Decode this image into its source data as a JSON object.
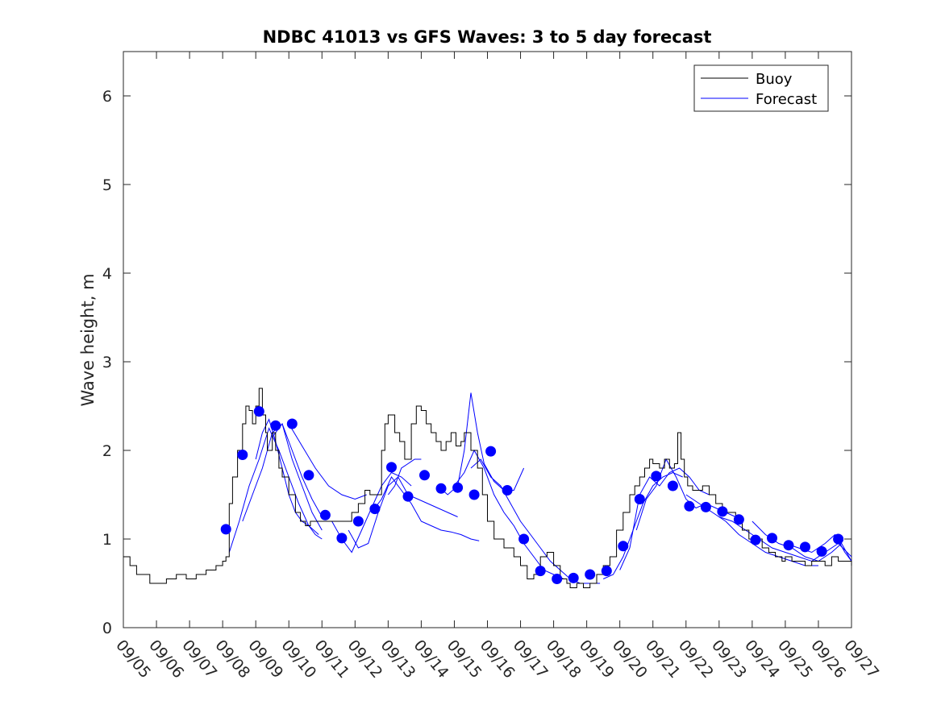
{
  "chart_data": {
    "type": "line",
    "title": "NDBC 41013 vs GFS Waves: 3 to 5 day forecast",
    "xlabel": "",
    "ylabel": "Wave height, m",
    "xlim": [
      0,
      22
    ],
    "ylim": [
      0,
      6.5
    ],
    "yticks": [
      0,
      1,
      2,
      3,
      4,
      5,
      6
    ],
    "xtick_labels": [
      "09/05",
      "09/06",
      "09/07",
      "09/08",
      "09/09",
      "09/10",
      "09/11",
      "09/12",
      "09/13",
      "09/14",
      "09/15",
      "09/16",
      "09/17",
      "09/18",
      "09/19",
      "09/20",
      "09/21",
      "09/22",
      "09/23",
      "09/24",
      "09/25",
      "09/26",
      "09/27"
    ],
    "legend": {
      "position": "top-right",
      "entries": [
        "Buoy",
        "Forecast"
      ]
    },
    "colors": {
      "buoy": "#000000",
      "forecast": "#0000ff",
      "axes": "#262626"
    },
    "buoy": {
      "name": "Buoy",
      "x": [
        0,
        0.2,
        0.4,
        0.6,
        0.8,
        1.0,
        1.3,
        1.6,
        1.9,
        2.2,
        2.5,
        2.8,
        3.0,
        3.1,
        3.2,
        3.3,
        3.45,
        3.6,
        3.7,
        3.8,
        3.9,
        4.0,
        4.1,
        4.2,
        4.3,
        4.35,
        4.5,
        4.6,
        4.7,
        4.8,
        5.0,
        5.2,
        5.35,
        5.5,
        5.65,
        5.8,
        6.0,
        6.3,
        6.6,
        6.9,
        7.1,
        7.3,
        7.45,
        7.6,
        7.8,
        7.9,
        8.0,
        8.2,
        8.35,
        8.5,
        8.7,
        8.85,
        9.0,
        9.15,
        9.3,
        9.45,
        9.6,
        9.75,
        9.9,
        10.05,
        10.2,
        10.3,
        10.5,
        10.7,
        10.85,
        11.0,
        11.2,
        11.5,
        11.8,
        12.0,
        12.2,
        12.4,
        12.6,
        12.8,
        13.0,
        13.2,
        13.4,
        13.5,
        13.7,
        13.9,
        14.1,
        14.3,
        14.5,
        14.7,
        14.9,
        15.1,
        15.3,
        15.45,
        15.6,
        15.75,
        15.9,
        16.0,
        16.2,
        16.35,
        16.5,
        16.65,
        16.75,
        16.85,
        16.95,
        17.05,
        17.2,
        17.35,
        17.5,
        17.7,
        17.9,
        18.1,
        18.3,
        18.5,
        18.7,
        18.9,
        19.1,
        19.3,
        19.5,
        19.7,
        19.9,
        20.0,
        20.2,
        20.4,
        20.6,
        20.8,
        21.0,
        21.2,
        21.4,
        21.6,
        21.8,
        22.0
      ],
      "values": [
        0.8,
        0.7,
        0.6,
        0.6,
        0.5,
        0.5,
        0.55,
        0.6,
        0.55,
        0.6,
        0.65,
        0.7,
        0.75,
        0.8,
        1.4,
        1.7,
        2.0,
        2.3,
        2.5,
        2.45,
        2.3,
        2.5,
        2.7,
        2.4,
        2.2,
        2.0,
        2.2,
        2.0,
        1.8,
        1.7,
        1.5,
        1.3,
        1.2,
        1.15,
        1.2,
        1.2,
        1.2,
        1.2,
        1.2,
        1.3,
        1.4,
        1.55,
        1.5,
        1.5,
        2.0,
        2.3,
        2.4,
        2.2,
        2.1,
        1.9,
        2.3,
        2.5,
        2.45,
        2.3,
        2.2,
        2.1,
        2.0,
        2.1,
        2.2,
        2.05,
        2.1,
        2.2,
        2.0,
        1.8,
        1.5,
        1.2,
        1.0,
        0.9,
        0.8,
        0.7,
        0.55,
        0.6,
        0.8,
        0.85,
        0.7,
        0.55,
        0.5,
        0.45,
        0.5,
        0.45,
        0.5,
        0.6,
        0.7,
        0.8,
        1.1,
        1.3,
        1.5,
        1.6,
        1.7,
        1.8,
        1.9,
        1.85,
        1.8,
        1.9,
        1.8,
        1.85,
        2.2,
        1.9,
        1.7,
        1.6,
        1.55,
        1.55,
        1.6,
        1.5,
        1.4,
        1.3,
        1.3,
        1.2,
        1.1,
        1.0,
        1.0,
        0.9,
        0.85,
        0.8,
        0.75,
        0.8,
        0.75,
        0.75,
        0.7,
        0.75,
        0.75,
        0.7,
        0.8,
        0.75,
        0.75,
        0.7
      ]
    },
    "forecast_runs": [
      {
        "name": "Forecast",
        "x": [
          3.2,
          3.5,
          3.8,
          4.1,
          4.4,
          4.7,
          5.0,
          5.3,
          5.6,
          5.9
        ],
        "values": [
          0.85,
          1.2,
          1.6,
          1.9,
          2.25,
          2.0,
          1.7,
          1.4,
          1.15,
          1.05
        ]
      },
      {
        "name": "Forecast",
        "x": [
          3.6,
          3.9,
          4.2,
          4.5,
          4.8,
          5.1,
          5.4,
          5.7,
          6.0
        ],
        "values": [
          1.2,
          1.5,
          1.8,
          2.2,
          2.3,
          1.9,
          1.6,
          1.3,
          1.1
        ]
      },
      {
        "name": "Forecast",
        "x": [
          4.0,
          4.2,
          4.4,
          4.6,
          4.8,
          5.0,
          5.2,
          5.4,
          5.6,
          5.8,
          6.0
        ],
        "values": [
          1.9,
          2.2,
          2.35,
          2.1,
          1.8,
          1.5,
          1.3,
          1.2,
          1.15,
          1.05,
          1.0
        ]
      },
      {
        "name": "Forecast",
        "x": [
          4.5,
          4.8,
          5.1,
          5.4,
          5.7,
          6.0
        ],
        "values": [
          2.15,
          2.3,
          2.0,
          1.7,
          1.45,
          1.25
        ]
      },
      {
        "name": "Forecast",
        "x": [
          5.0,
          5.4,
          5.8,
          6.2,
          6.6,
          7.0,
          7.35
        ],
        "values": [
          2.3,
          2.05,
          1.8,
          1.6,
          1.5,
          1.45,
          1.5
        ]
      },
      {
        "name": "Forecast",
        "x": [
          6.3,
          6.6,
          6.9,
          7.2,
          7.5,
          7.8,
          8.1,
          8.4,
          8.7
        ],
        "values": [
          1.2,
          1.0,
          0.85,
          1.1,
          1.35,
          1.6,
          1.75,
          1.7,
          1.6
        ]
      },
      {
        "name": "Forecast",
        "x": [
          6.8,
          7.1,
          7.4,
          7.7,
          8.0,
          8.3,
          8.6,
          8.9,
          9.2,
          9.5,
          9.8,
          10.1
        ],
        "values": [
          1.1,
          0.9,
          0.95,
          1.3,
          1.6,
          1.7,
          1.5,
          1.45,
          1.4,
          1.35,
          1.3,
          1.25
        ]
      },
      {
        "name": "Forecast",
        "x": [
          7.5,
          7.8,
          8.1,
          8.4,
          8.7,
          9.0,
          9.3,
          9.6,
          9.9,
          10.2,
          10.5,
          10.75
        ],
        "values": [
          1.3,
          1.45,
          1.7,
          1.55,
          1.4,
          1.2,
          1.15,
          1.1,
          1.08,
          1.05,
          1.0,
          0.98
        ]
      },
      {
        "name": "Forecast",
        "x": [
          8.0,
          8.2,
          8.4,
          8.6,
          8.8,
          9.0
        ],
        "values": [
          1.5,
          1.6,
          1.8,
          1.85,
          1.9,
          1.9
        ]
      },
      {
        "name": "Forecast",
        "x": [
          9.5,
          9.8,
          10.1,
          10.3,
          10.5,
          10.7,
          10.9,
          11.2,
          11.5,
          11.8,
          12.1
        ],
        "values": [
          1.6,
          1.5,
          1.6,
          2.0,
          2.65,
          2.2,
          1.85,
          1.65,
          1.55,
          1.55,
          1.8
        ]
      },
      {
        "name": "Forecast",
        "x": [
          10.0,
          10.3,
          10.6,
          10.9,
          11.2,
          11.5,
          11.8,
          12.1,
          12.4,
          12.7,
          13.0,
          13.3
        ],
        "values": [
          1.6,
          1.75,
          2.0,
          1.8,
          1.5,
          1.3,
          1.15,
          0.95,
          0.8,
          0.65,
          0.6,
          0.55
        ]
      },
      {
        "name": "Forecast",
        "x": [
          10.5,
          10.8,
          11.1,
          11.4,
          11.7,
          12.0,
          12.3,
          12.6,
          12.9,
          13.2,
          13.5,
          13.8,
          14.1,
          14.4
        ],
        "values": [
          1.8,
          1.9,
          1.7,
          1.6,
          1.4,
          1.2,
          1.05,
          0.9,
          0.75,
          0.65,
          0.55,
          0.5,
          0.5,
          0.5
        ]
      },
      {
        "name": "Forecast",
        "x": [
          14.5,
          14.8,
          15.1,
          15.4,
          15.7,
          16.0,
          16.3,
          16.6,
          16.9
        ],
        "values": [
          0.55,
          0.6,
          0.8,
          1.1,
          1.4,
          1.6,
          1.7,
          1.75,
          1.7
        ]
      },
      {
        "name": "Forecast",
        "x": [
          15.0,
          15.3,
          15.6,
          15.9,
          16.2,
          16.5,
          16.8,
          17.1,
          17.4,
          17.7
        ],
        "values": [
          0.65,
          0.9,
          1.5,
          1.7,
          1.6,
          1.75,
          1.8,
          1.7,
          1.55,
          1.5
        ]
      },
      {
        "name": "Forecast",
        "x": [
          15.5,
          15.8,
          16.1,
          16.4,
          16.7,
          17.0,
          17.3,
          17.6,
          17.9,
          18.2,
          18.5
        ],
        "values": [
          1.1,
          1.45,
          1.6,
          1.9,
          1.7,
          1.45,
          1.35,
          1.4,
          1.35,
          1.3,
          1.25
        ]
      },
      {
        "name": "Forecast",
        "x": [
          17.0,
          17.4,
          17.8,
          18.2,
          18.6,
          19.0,
          19.4,
          19.8,
          20.2,
          20.6,
          21.0
        ],
        "values": [
          1.5,
          1.4,
          1.3,
          1.2,
          1.05,
          0.95,
          0.85,
          0.8,
          0.75,
          0.7,
          0.7
        ]
      },
      {
        "name": "Forecast",
        "x": [
          18.0,
          18.4,
          18.8,
          19.2,
          19.6,
          20.0,
          20.4,
          20.8,
          21.2,
          21.6,
          22.0
        ],
        "values": [
          1.25,
          1.2,
          1.1,
          1.0,
          0.9,
          0.85,
          0.8,
          0.75,
          0.85,
          0.95,
          0.8
        ]
      },
      {
        "name": "Forecast",
        "x": [
          19.0,
          19.4,
          19.8,
          20.2,
          20.6,
          21.0,
          21.4,
          21.7,
          22.0
        ],
        "values": [
          1.2,
          1.05,
          0.95,
          0.9,
          0.8,
          0.75,
          0.85,
          0.95,
          0.75
        ]
      },
      {
        "name": "Forecast",
        "x": [
          20.0,
          20.4,
          20.8,
          21.2,
          21.5,
          21.8,
          22.0
        ],
        "values": [
          0.95,
          0.9,
          0.85,
          0.95,
          1.05,
          0.85,
          0.75
        ]
      }
    ],
    "forecast_points": {
      "name": "Forecast",
      "x": [
        3.1,
        3.6,
        4.1,
        4.6,
        5.1,
        5.6,
        6.1,
        6.6,
        7.1,
        7.6,
        8.1,
        8.6,
        9.1,
        9.6,
        10.1,
        10.6,
        11.1,
        11.6,
        12.1,
        12.6,
        13.1,
        13.6,
        14.1,
        14.6,
        15.1,
        15.6,
        16.1,
        16.6,
        17.1,
        17.6,
        18.1,
        18.6,
        19.1,
        19.6,
        20.1,
        20.6,
        21.1,
        21.6
      ],
      "values": [
        1.11,
        1.95,
        2.44,
        2.28,
        2.3,
        1.72,
        1.27,
        1.01,
        1.2,
        1.34,
        1.81,
        1.48,
        1.72,
        1.57,
        1.58,
        1.5,
        1.99,
        1.55,
        1.0,
        0.64,
        0.55,
        0.56,
        0.6,
        0.64,
        0.92,
        1.45,
        1.71,
        1.6,
        1.37,
        1.36,
        1.31,
        1.22,
        0.99,
        1.01,
        0.93,
        0.91,
        0.86,
        1.0
      ]
    }
  }
}
